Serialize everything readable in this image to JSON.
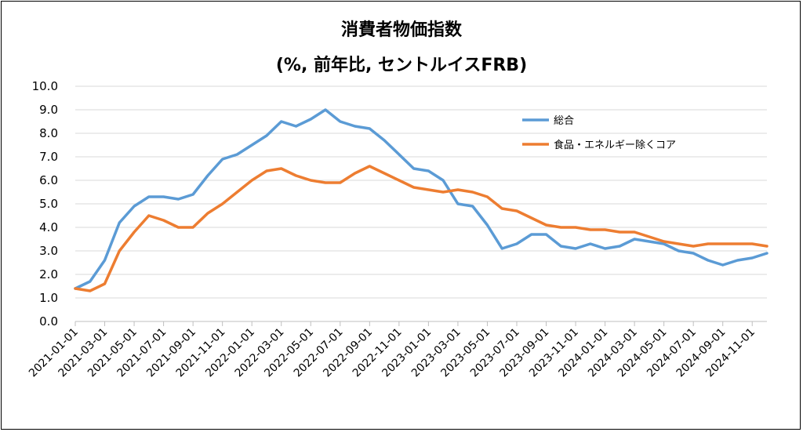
{
  "chart_data": {
    "type": "line",
    "title": "消費者物価指数",
    "subtitle": "(%, 前年比, セントルイスFRB)",
    "xlabel": "",
    "ylabel": "",
    "ylim": [
      0,
      10
    ],
    "yticks": [
      "0.0",
      "1.0",
      "2.0",
      "3.0",
      "4.0",
      "5.0",
      "6.0",
      "7.0",
      "8.0",
      "9.0",
      "10.0"
    ],
    "x": [
      "2021-01-01",
      "2021-02-01",
      "2021-03-01",
      "2021-04-01",
      "2021-05-01",
      "2021-06-01",
      "2021-07-01",
      "2021-08-01",
      "2021-09-01",
      "2021-10-01",
      "2021-11-01",
      "2021-12-01",
      "2022-01-01",
      "2022-02-01",
      "2022-03-01",
      "2022-04-01",
      "2022-05-01",
      "2022-06-01",
      "2022-07-01",
      "2022-08-01",
      "2022-09-01",
      "2022-10-01",
      "2022-11-01",
      "2022-12-01",
      "2023-01-01",
      "2023-02-01",
      "2023-03-01",
      "2023-04-01",
      "2023-05-01",
      "2023-06-01",
      "2023-07-01",
      "2023-08-01",
      "2023-09-01",
      "2023-10-01",
      "2023-11-01",
      "2023-12-01",
      "2024-01-01",
      "2024-02-01",
      "2024-03-01",
      "2024-04-01",
      "2024-05-01",
      "2024-06-01",
      "2024-07-01",
      "2024-08-01",
      "2024-09-01",
      "2024-10-01",
      "2024-11-01",
      "2024-12-01"
    ],
    "xtick_labels": [
      "2021-01-01",
      "2021-03-01",
      "2021-05-01",
      "2021-07-01",
      "2021-09-01",
      "2021-11-01",
      "2022-01-01",
      "2022-03-01",
      "2022-05-01",
      "2022-07-01",
      "2022-09-01",
      "2022-11-01",
      "2023-01-01",
      "2023-03-01",
      "2023-05-01",
      "2023-07-01",
      "2023-09-01",
      "2023-11-01",
      "2024-01-01",
      "2024-03-01",
      "2024-05-01",
      "2024-07-01",
      "2024-09-01",
      "2024-11-01"
    ],
    "series": [
      {
        "name": "総合",
        "color": "#5B9BD5",
        "values": [
          1.4,
          1.7,
          2.6,
          4.2,
          4.9,
          5.3,
          5.3,
          5.2,
          5.4,
          6.2,
          6.9,
          7.1,
          7.5,
          7.9,
          8.5,
          8.3,
          8.6,
          9.0,
          8.5,
          8.3,
          8.2,
          7.7,
          7.1,
          6.5,
          6.4,
          6.0,
          5.0,
          4.9,
          4.1,
          3.1,
          3.3,
          3.7,
          3.7,
          3.2,
          3.1,
          3.3,
          3.1,
          3.2,
          3.5,
          3.4,
          3.3,
          3.0,
          2.9,
          2.6,
          2.4,
          2.6,
          2.7,
          2.9
        ]
      },
      {
        "name": "食品・エネルギー除くコア",
        "color": "#ED7D31",
        "values": [
          1.4,
          1.3,
          1.6,
          3.0,
          3.8,
          4.5,
          4.3,
          4.0,
          4.0,
          4.6,
          5.0,
          5.5,
          6.0,
          6.4,
          6.5,
          6.2,
          6.0,
          5.9,
          5.9,
          6.3,
          6.6,
          6.3,
          6.0,
          5.7,
          5.6,
          5.5,
          5.6,
          5.5,
          5.3,
          4.8,
          4.7,
          4.4,
          4.1,
          4.0,
          4.0,
          3.9,
          3.9,
          3.8,
          3.8,
          3.6,
          3.4,
          3.3,
          3.2,
          3.3,
          3.3,
          3.3,
          3.3,
          3.2
        ]
      }
    ],
    "grid": true,
    "legend_position": "inside-top-right"
  }
}
